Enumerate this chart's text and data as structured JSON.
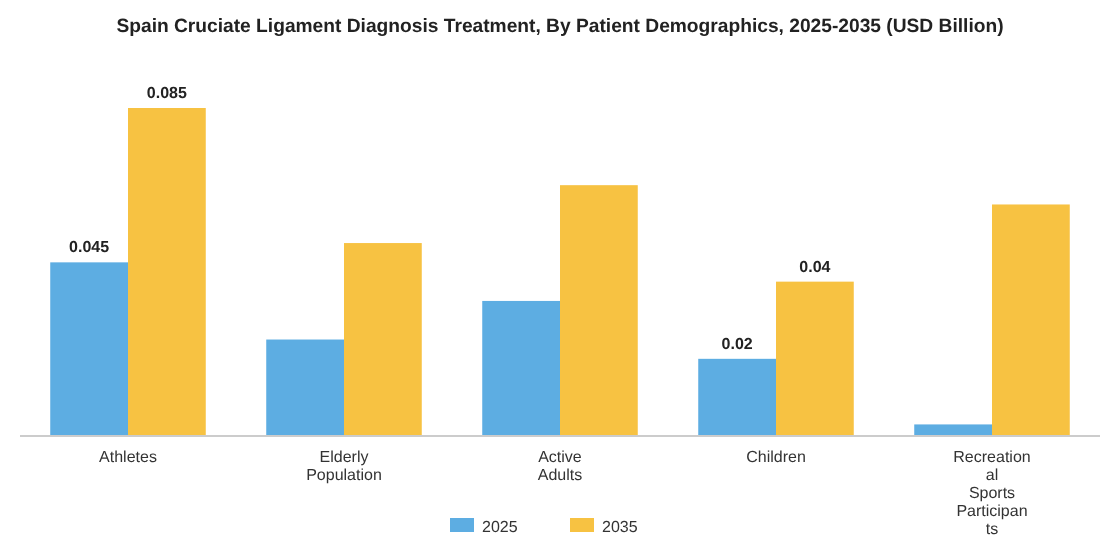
{
  "chart_data": {
    "type": "bar",
    "title": "Spain Cruciate Ligament Diagnosis Treatment, By Patient Demographics, 2025-2035 (USD Billion)",
    "categories": [
      "Athletes",
      "Elderly Population",
      "Active Adults",
      "Children",
      "Recreational Sports Participants"
    ],
    "series": [
      {
        "name": "2025",
        "color": "#5dade2",
        "values": [
          0.045,
          0.025,
          0.035,
          0.02,
          0.003
        ],
        "value_labels": [
          "0.045",
          null,
          null,
          "0.02",
          null
        ]
      },
      {
        "name": "2035",
        "color": "#f7c242",
        "values": [
          0.085,
          0.05,
          0.065,
          0.04,
          0.06
        ],
        "value_labels": [
          "0.085",
          null,
          null,
          "0.04",
          null
        ]
      }
    ],
    "legend": "bottom"
  }
}
